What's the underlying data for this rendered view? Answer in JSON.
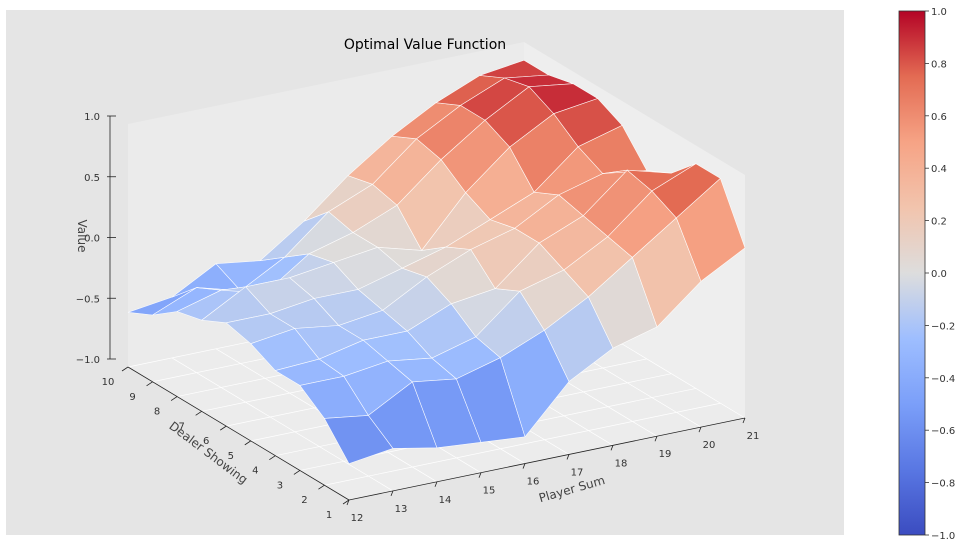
{
  "chart_data": {
    "type": "surface3d",
    "title": "Optimal Value Function",
    "xlabel": "Player Sum",
    "ylabel": "Dealer Showing",
    "zlabel": "Value",
    "x_ticks": [
      12,
      13,
      14,
      15,
      16,
      17,
      18,
      19,
      20,
      21
    ],
    "y_ticks": [
      1,
      2,
      3,
      4,
      5,
      6,
      7,
      8,
      9,
      10
    ],
    "z_ticks": [
      -1.0,
      -0.5,
      0.0,
      0.5,
      1.0
    ],
    "z_tick_labels": [
      "−1.0",
      "−0.5",
      "0.0",
      "0.5",
      "1.0"
    ],
    "zlim": [
      -1.0,
      1.0
    ],
    "colorbar": {
      "colormap": "coolwarm",
      "min": -1.0,
      "max": 1.0,
      "ticks": [
        -1.0,
        -0.8,
        -0.6,
        -0.4,
        -0.2,
        0.0,
        0.2,
        0.4,
        0.6,
        0.8,
        1.0
      ],
      "tick_labels": [
        "−1.0",
        "−0.8",
        "−0.6",
        "−0.4",
        "−0.2",
        "0.0",
        "0.2",
        "0.4",
        "0.6",
        "0.8",
        "1.0"
      ]
    },
    "x": [
      12,
      13,
      14,
      15,
      16,
      17,
      18,
      19,
      20,
      21
    ],
    "y": [
      1,
      2,
      3,
      4,
      5,
      6,
      7,
      8,
      9,
      10
    ],
    "z_rows_by_dealer": [
      [
        -0.7,
        -0.65,
        -0.72,
        -0.75,
        -0.78,
        -0.4,
        -0.2,
        -0.1,
        0.2,
        0.4
      ],
      [
        -0.45,
        -0.5,
        -0.3,
        -0.35,
        -0.25,
        -0.1,
        0.1,
        0.35,
        0.6,
        0.85
      ],
      [
        -0.3,
        -0.3,
        -0.25,
        -0.3,
        -0.2,
        0.1,
        0.2,
        0.4,
        0.7,
        0.85
      ],
      [
        -0.3,
        -0.28,
        -0.2,
        -0.2,
        -0.05,
        0.0,
        0.3,
        0.45,
        0.75,
        0.65
      ],
      [
        -0.2,
        -0.15,
        -0.2,
        -0.15,
        0.05,
        0.2,
        0.3,
        0.5,
        0.6,
        0.55
      ],
      [
        -0.15,
        -0.15,
        -0.1,
        -0.1,
        0.0,
        0.1,
        0.25,
        0.4,
        0.7,
        0.8
      ],
      [
        -0.25,
        -0.05,
        -0.05,
        0.0,
        0.05,
        -0.05,
        0.35,
        0.65,
        0.85,
        0.9
      ],
      [
        -0.3,
        -0.2,
        -0.3,
        -0.05,
        0.05,
        0.2,
        0.5,
        0.75,
        0.95,
        0.9
      ],
      [
        -0.45,
        -0.3,
        -0.4,
        -0.2,
        0.1,
        0.25,
        0.55,
        0.75,
        0.9,
        0.85
      ],
      [
        -0.55,
        -0.5,
        -0.3,
        -0.35,
        -0.1,
        0.2,
        0.45,
        0.65,
        0.8,
        0.85
      ]
    ],
    "grid": true,
    "legend": "colorbar-right"
  }
}
